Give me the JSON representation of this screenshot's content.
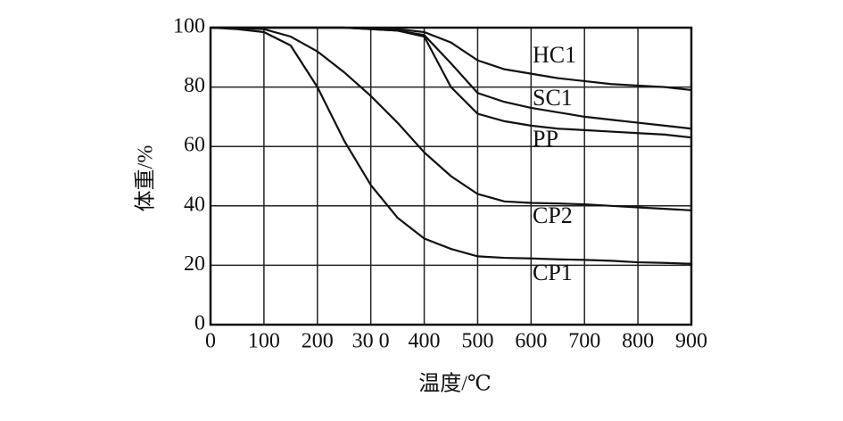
{
  "chart_data": {
    "type": "line",
    "xlabel": "温度/℃",
    "ylabel": "体重/%",
    "x": [
      0,
      50,
      100,
      150,
      200,
      250,
      300,
      350,
      400,
      450,
      500,
      550,
      600,
      650,
      700,
      750,
      800,
      850,
      900
    ],
    "series": [
      {
        "name": "HC1",
        "color": "#111111",
        "values": [
          100,
          100,
          100,
          100,
          100,
          100,
          99.8,
          99.5,
          98.5,
          95,
          89,
          86,
          84.5,
          83,
          82,
          81,
          80.5,
          80,
          79
        ]
      },
      {
        "name": "SC1",
        "color": "#111111",
        "values": [
          100,
          100,
          100,
          100,
          100,
          100,
          99.5,
          99,
          97.5,
          88,
          78,
          75,
          73,
          71.5,
          70,
          69,
          68,
          67,
          66
        ]
      },
      {
        "name": "PP",
        "color": "#111111",
        "values": [
          100,
          100,
          100,
          100,
          100,
          100,
          99.5,
          99,
          97,
          80,
          71,
          68.5,
          67,
          66,
          65.5,
          65,
          64.5,
          64,
          63
        ]
      },
      {
        "name": "CP2",
        "color": "#111111",
        "values": [
          100,
          99.8,
          99.5,
          97,
          92,
          85,
          77,
          68,
          58,
          50,
          44,
          41.5,
          41,
          40.8,
          40.5,
          40,
          39.5,
          39,
          38.5
        ]
      },
      {
        "name": "CP1",
        "color": "#111111",
        "values": [
          100,
          99.5,
          98.5,
          94,
          80,
          62,
          47,
          36,
          29,
          25.5,
          23,
          22.5,
          22.3,
          22,
          21.8,
          21.5,
          21,
          20.8,
          20.5
        ]
      }
    ],
    "xlim": [
      0,
      900
    ],
    "xticks": [
      0,
      100,
      200,
      {
        "value": 300,
        "label": "30 0"
      },
      400,
      500,
      600,
      700,
      800,
      900
    ],
    "ylim": [
      0,
      100
    ],
    "yticks": [
      0,
      20,
      40,
      60,
      80,
      100
    ],
    "grid": true
  }
}
